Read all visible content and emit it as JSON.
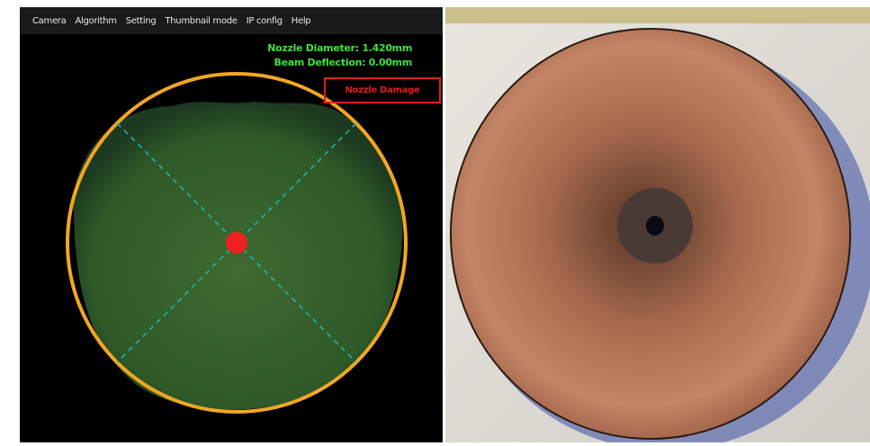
{
  "menu": [
    "Camera",
    "Algorithm",
    "Setting",
    "Thumbnail mode",
    "IP config",
    "Help"
  ],
  "overlay": {
    "nozzle_diameter": "Nozzle Diameter: 1.420mm",
    "beam_deflection": "Beam Deflection: 0.00mm",
    "status": "Nozzle Damage"
  }
}
